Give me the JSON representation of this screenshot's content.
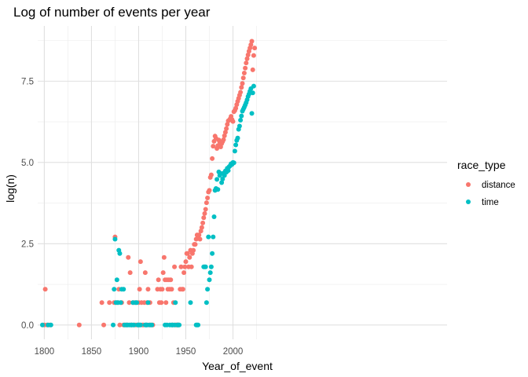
{
  "chart_data": {
    "type": "scatter",
    "title": "Log of number of events per year",
    "xlabel": "Year_of_event",
    "ylabel": "log(n)",
    "xlim": [
      1793,
      2227
    ],
    "ylim": [
      -0.44,
      9.2
    ],
    "xticks": [
      1800,
      1850,
      1900,
      1950,
      2000
    ],
    "xtick_labels": [
      "1800",
      "1850",
      "1900",
      "1950",
      "2000"
    ],
    "yticks": [
      0,
      2.5,
      5,
      7.5
    ],
    "ytick_labels": [
      "0.0",
      "2.5",
      "5.0",
      "7.5"
    ],
    "grid": true,
    "legend": {
      "title": "race_type",
      "position": "right"
    },
    "series": [
      {
        "name": "distance",
        "color": "#F8766D",
        "points": [
          [
            1800,
            0
          ],
          [
            1801,
            1.1
          ],
          [
            1803,
            0
          ],
          [
            1806,
            0
          ],
          [
            1837,
            0
          ],
          [
            1861,
            0.69
          ],
          [
            1863,
            0
          ],
          [
            1869,
            0.69
          ],
          [
            1874,
            0.69
          ],
          [
            1875,
            2.71
          ],
          [
            1876,
            0.69
          ],
          [
            1878,
            0.69
          ],
          [
            1879,
            1.1
          ],
          [
            1880,
            0
          ],
          [
            1882,
            0.69
          ],
          [
            1884,
            0
          ],
          [
            1886,
            0
          ],
          [
            1888,
            0
          ],
          [
            1889,
            2.08
          ],
          [
            1890,
            0.69
          ],
          [
            1891,
            1.61
          ],
          [
            1892,
            0
          ],
          [
            1894,
            0.69
          ],
          [
            1895,
            0
          ],
          [
            1896,
            0.69
          ],
          [
            1897,
            0
          ],
          [
            1899,
            0
          ],
          [
            1900,
            0.69
          ],
          [
            1901,
            1.1
          ],
          [
            1902,
            1.95
          ],
          [
            1903,
            0.69
          ],
          [
            1904,
            0
          ],
          [
            1905,
            0
          ],
          [
            1906,
            0.69
          ],
          [
            1907,
            1.61
          ],
          [
            1908,
            0
          ],
          [
            1909,
            0.69
          ],
          [
            1910,
            1.1
          ],
          [
            1911,
            0
          ],
          [
            1912,
            0.69
          ],
          [
            1913,
            0
          ],
          [
            1915,
            0
          ],
          [
            1920,
            1.1
          ],
          [
            1921,
            1.39
          ],
          [
            1922,
            0.69
          ],
          [
            1923,
            1.1
          ],
          [
            1924,
            0.69
          ],
          [
            1925,
            1.1
          ],
          [
            1926,
            1.61
          ],
          [
            1927,
            2.08
          ],
          [
            1928,
            1.39
          ],
          [
            1929,
            0.69
          ],
          [
            1930,
            1.39
          ],
          [
            1931,
            1.1
          ],
          [
            1932,
            1.39
          ],
          [
            1933,
            1.1
          ],
          [
            1934,
            1.39
          ],
          [
            1935,
            1.1
          ],
          [
            1936,
            0
          ],
          [
            1937,
            0.69
          ],
          [
            1938,
            1.79
          ],
          [
            1939,
            0
          ],
          [
            1940,
            0
          ],
          [
            1941,
            0
          ],
          [
            1942,
            0
          ],
          [
            1944,
            1.1
          ],
          [
            1945,
            1.79
          ],
          [
            1946,
            1.1
          ],
          [
            1947,
            1.1
          ],
          [
            1948,
            1.61
          ],
          [
            1949,
            1.79
          ],
          [
            1950,
            1.95
          ],
          [
            1951,
            2.2
          ],
          [
            1952,
            2.2
          ],
          [
            1953,
            1.79
          ],
          [
            1954,
            2.08
          ],
          [
            1955,
            2.3
          ],
          [
            1956,
            1.79
          ],
          [
            1957,
            2.2
          ],
          [
            1958,
            2.3
          ],
          [
            1959,
            2.48
          ],
          [
            1960,
            2.48
          ],
          [
            1961,
            2.64
          ],
          [
            1962,
            2.77
          ],
          [
            1963,
            2.71
          ],
          [
            1964,
            2.77
          ],
          [
            1965,
            2.64
          ],
          [
            1966,
            2.89
          ],
          [
            1967,
            3.0
          ],
          [
            1968,
            3.14
          ],
          [
            1969,
            3.3
          ],
          [
            1970,
            3.43
          ],
          [
            1971,
            3.56
          ],
          [
            1972,
            3.76
          ],
          [
            1973,
            3.91
          ],
          [
            1974,
            4.09
          ],
          [
            1975,
            4.14
          ],
          [
            1976,
            4.54
          ],
          [
            1977,
            4.62
          ],
          [
            1978,
            5.12
          ],
          [
            1979,
            5.5
          ],
          [
            1980,
            5.65
          ],
          [
            1981,
            5.81
          ],
          [
            1982,
            5.74
          ],
          [
            1983,
            5.43
          ],
          [
            1984,
            5.52
          ],
          [
            1985,
            5.69
          ],
          [
            1986,
            5.63
          ],
          [
            1987,
            5.48
          ],
          [
            1988,
            5.58
          ],
          [
            1989,
            5.64
          ],
          [
            1990,
            5.7
          ],
          [
            1991,
            5.82
          ],
          [
            1992,
            5.93
          ],
          [
            1993,
            6.04
          ],
          [
            1994,
            6.17
          ],
          [
            1995,
            6.28
          ],
          [
            1996,
            6.3
          ],
          [
            1997,
            6.34
          ],
          [
            1998,
            6.42
          ],
          [
            1999,
            6.32
          ],
          [
            2000,
            6.26
          ],
          [
            2001,
            6.56
          ],
          [
            2002,
            6.6
          ],
          [
            2003,
            6.67
          ],
          [
            2004,
            6.78
          ],
          [
            2005,
            6.88
          ],
          [
            2006,
            6.97
          ],
          [
            2007,
            7.07
          ],
          [
            2008,
            7.16
          ],
          [
            2009,
            7.31
          ],
          [
            2010,
            7.43
          ],
          [
            2011,
            7.6
          ],
          [
            2012,
            7.75
          ],
          [
            2013,
            7.9
          ],
          [
            2014,
            8.06
          ],
          [
            2015,
            8.19
          ],
          [
            2016,
            8.31
          ],
          [
            2017,
            8.42
          ],
          [
            2018,
            8.52
          ],
          [
            2019,
            8.62
          ],
          [
            2020,
            8.73
          ],
          [
            2021,
            7.85
          ],
          [
            2022,
            8.29
          ],
          [
            2023,
            8.52
          ]
        ]
      },
      {
        "name": "time",
        "color": "#00BFC4",
        "points": [
          [
            1798,
            0
          ],
          [
            1804,
            0
          ],
          [
            1807,
            0
          ],
          [
            1873,
            0
          ],
          [
            1874,
            1.1
          ],
          [
            1875,
            2.64
          ],
          [
            1876,
            0.69
          ],
          [
            1877,
            1.39
          ],
          [
            1878,
            0.69
          ],
          [
            1879,
            2.3
          ],
          [
            1880,
            2.2
          ],
          [
            1881,
            0.69
          ],
          [
            1882,
            1.1
          ],
          [
            1884,
            1.1
          ],
          [
            1885,
            0
          ],
          [
            1887,
            0
          ],
          [
            1888,
            0
          ],
          [
            1890,
            0
          ],
          [
            1892,
            0
          ],
          [
            1893,
            0
          ],
          [
            1894,
            0.69
          ],
          [
            1895,
            0
          ],
          [
            1897,
            0.69
          ],
          [
            1898,
            0.69
          ],
          [
            1899,
            0
          ],
          [
            1900,
            0
          ],
          [
            1901,
            0
          ],
          [
            1902,
            0
          ],
          [
            1907,
            0
          ],
          [
            1908,
            0
          ],
          [
            1909,
            0
          ],
          [
            1910,
            0.69
          ],
          [
            1912,
            0
          ],
          [
            1914,
            0
          ],
          [
            1928,
            0
          ],
          [
            1930,
            0
          ],
          [
            1933,
            0
          ],
          [
            1935,
            0
          ],
          [
            1936,
            0
          ],
          [
            1938,
            0
          ],
          [
            1939,
            0.69
          ],
          [
            1941,
            0
          ],
          [
            1942,
            0
          ],
          [
            1943,
            0
          ],
          [
            1955,
            0.69
          ],
          [
            1961,
            0
          ],
          [
            1962,
            0
          ],
          [
            1963,
            0
          ],
          [
            1969,
            1.79
          ],
          [
            1970,
            1.79
          ],
          [
            1971,
            1.79
          ],
          [
            1972,
            0.69
          ],
          [
            1973,
            1.1
          ],
          [
            1974,
            2.71
          ],
          [
            1975,
            1.39
          ],
          [
            1976,
            1.61
          ],
          [
            1977,
            1.79
          ],
          [
            1978,
            2.2
          ],
          [
            1979,
            2.71
          ],
          [
            1980,
            3.33
          ],
          [
            1981,
            4.14
          ],
          [
            1982,
            4.2
          ],
          [
            1983,
            4.48
          ],
          [
            1984,
            4.17
          ],
          [
            1985,
            4.71
          ],
          [
            1986,
            4.6
          ],
          [
            1987,
            4.66
          ],
          [
            1988,
            4.38
          ],
          [
            1989,
            4.49
          ],
          [
            1990,
            4.67
          ],
          [
            1991,
            4.6
          ],
          [
            1992,
            4.74
          ],
          [
            1993,
            4.7
          ],
          [
            1994,
            4.82
          ],
          [
            1995,
            4.75
          ],
          [
            1996,
            4.87
          ],
          [
            1997,
            4.9
          ],
          [
            1998,
            4.96
          ],
          [
            1999,
            4.94
          ],
          [
            2000,
            5.0
          ],
          [
            2001,
            4.99
          ],
          [
            2002,
            5.35
          ],
          [
            2003,
            5.54
          ],
          [
            2004,
            5.68
          ],
          [
            2005,
            5.75
          ],
          [
            2006,
            6.02
          ],
          [
            2007,
            6.12
          ],
          [
            2008,
            6.3
          ],
          [
            2009,
            6.43
          ],
          [
            2010,
            6.58
          ],
          [
            2011,
            6.64
          ],
          [
            2012,
            6.7
          ],
          [
            2013,
            6.77
          ],
          [
            2014,
            6.84
          ],
          [
            2015,
            6.93
          ],
          [
            2016,
            7.03
          ],
          [
            2017,
            7.1
          ],
          [
            2018,
            7.19
          ],
          [
            2019,
            7.27
          ],
          [
            2020,
            6.51
          ],
          [
            2021,
            7.14
          ],
          [
            2022,
            7.35
          ]
        ]
      }
    ]
  }
}
